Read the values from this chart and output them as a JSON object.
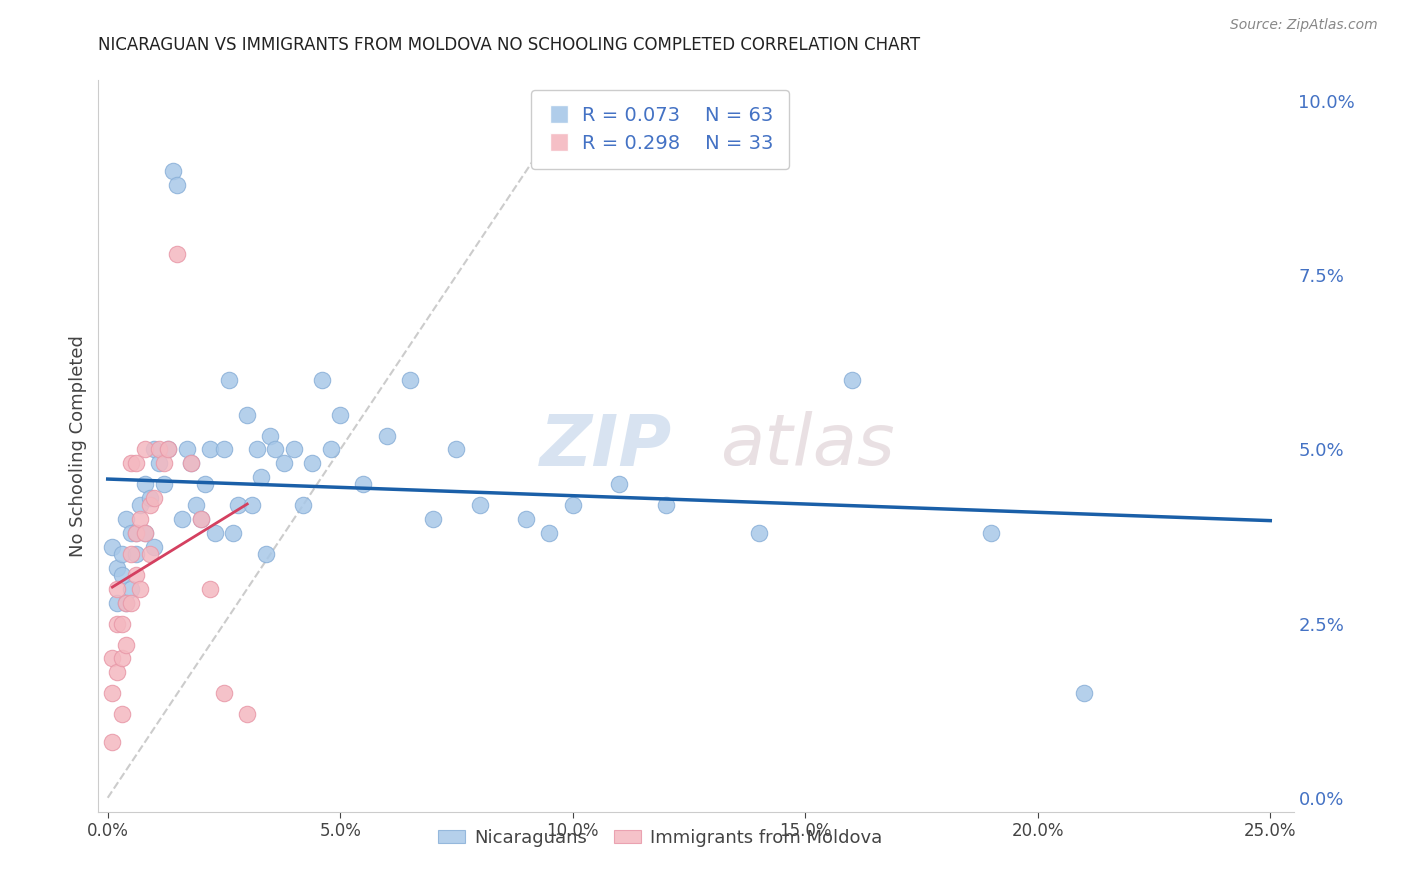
{
  "title": "NICARAGUAN VS IMMIGRANTS FROM MOLDOVA NO SCHOOLING COMPLETED CORRELATION CHART",
  "source": "Source: ZipAtlas.com",
  "xlabel_values": [
    0.0,
    0.05,
    0.1,
    0.15,
    0.2,
    0.25
  ],
  "ylabel_values": [
    0.0,
    0.025,
    0.05,
    0.075,
    0.1
  ],
  "xlim": [
    -0.002,
    0.255
  ],
  "ylim": [
    -0.002,
    0.103
  ],
  "ylabel": "No Schooling Completed",
  "blue_color": "#a8c8e8",
  "pink_color": "#f4b8c0",
  "blue_line_color": "#1a5fa8",
  "pink_line_color": "#d44060",
  "diagonal_color": "#cccccc",
  "right_axis_color": "#4472c4",
  "legend_blue_R": "R = 0.073",
  "legend_blue_N": "N = 63",
  "legend_pink_R": "R = 0.298",
  "legend_pink_N": "N = 33",
  "blue_scatter_x": [
    0.001,
    0.002,
    0.002,
    0.003,
    0.003,
    0.004,
    0.004,
    0.005,
    0.005,
    0.006,
    0.006,
    0.007,
    0.008,
    0.008,
    0.009,
    0.01,
    0.01,
    0.011,
    0.012,
    0.013,
    0.014,
    0.015,
    0.016,
    0.017,
    0.018,
    0.019,
    0.02,
    0.021,
    0.022,
    0.023,
    0.025,
    0.026,
    0.027,
    0.028,
    0.03,
    0.031,
    0.032,
    0.033,
    0.034,
    0.035,
    0.036,
    0.038,
    0.04,
    0.042,
    0.044,
    0.046,
    0.048,
    0.05,
    0.055,
    0.06,
    0.065,
    0.07,
    0.075,
    0.08,
    0.09,
    0.095,
    0.1,
    0.11,
    0.12,
    0.14,
    0.16,
    0.19,
    0.21
  ],
  "blue_scatter_y": [
    0.036,
    0.033,
    0.028,
    0.035,
    0.032,
    0.04,
    0.028,
    0.038,
    0.03,
    0.035,
    0.038,
    0.042,
    0.045,
    0.038,
    0.043,
    0.05,
    0.036,
    0.048,
    0.045,
    0.05,
    0.09,
    0.088,
    0.04,
    0.05,
    0.048,
    0.042,
    0.04,
    0.045,
    0.05,
    0.038,
    0.05,
    0.06,
    0.038,
    0.042,
    0.055,
    0.042,
    0.05,
    0.046,
    0.035,
    0.052,
    0.05,
    0.048,
    0.05,
    0.042,
    0.048,
    0.06,
    0.05,
    0.055,
    0.045,
    0.052,
    0.06,
    0.04,
    0.05,
    0.042,
    0.04,
    0.038,
    0.042,
    0.045,
    0.042,
    0.038,
    0.06,
    0.038,
    0.015
  ],
  "pink_scatter_x": [
    0.001,
    0.001,
    0.001,
    0.002,
    0.002,
    0.002,
    0.003,
    0.003,
    0.003,
    0.004,
    0.004,
    0.005,
    0.005,
    0.005,
    0.006,
    0.006,
    0.006,
    0.007,
    0.007,
    0.008,
    0.008,
    0.009,
    0.009,
    0.01,
    0.011,
    0.012,
    0.013,
    0.015,
    0.018,
    0.02,
    0.022,
    0.025,
    0.03
  ],
  "pink_scatter_y": [
    0.008,
    0.015,
    0.02,
    0.018,
    0.025,
    0.03,
    0.012,
    0.02,
    0.025,
    0.022,
    0.028,
    0.028,
    0.035,
    0.048,
    0.032,
    0.038,
    0.048,
    0.03,
    0.04,
    0.038,
    0.05,
    0.035,
    0.042,
    0.043,
    0.05,
    0.048,
    0.05,
    0.078,
    0.048,
    0.04,
    0.03,
    0.015,
    0.012
  ],
  "watermark_zip": "ZIP",
  "watermark_atlas": "atlas",
  "background_color": "#ffffff",
  "grid_color": "#dddddd"
}
